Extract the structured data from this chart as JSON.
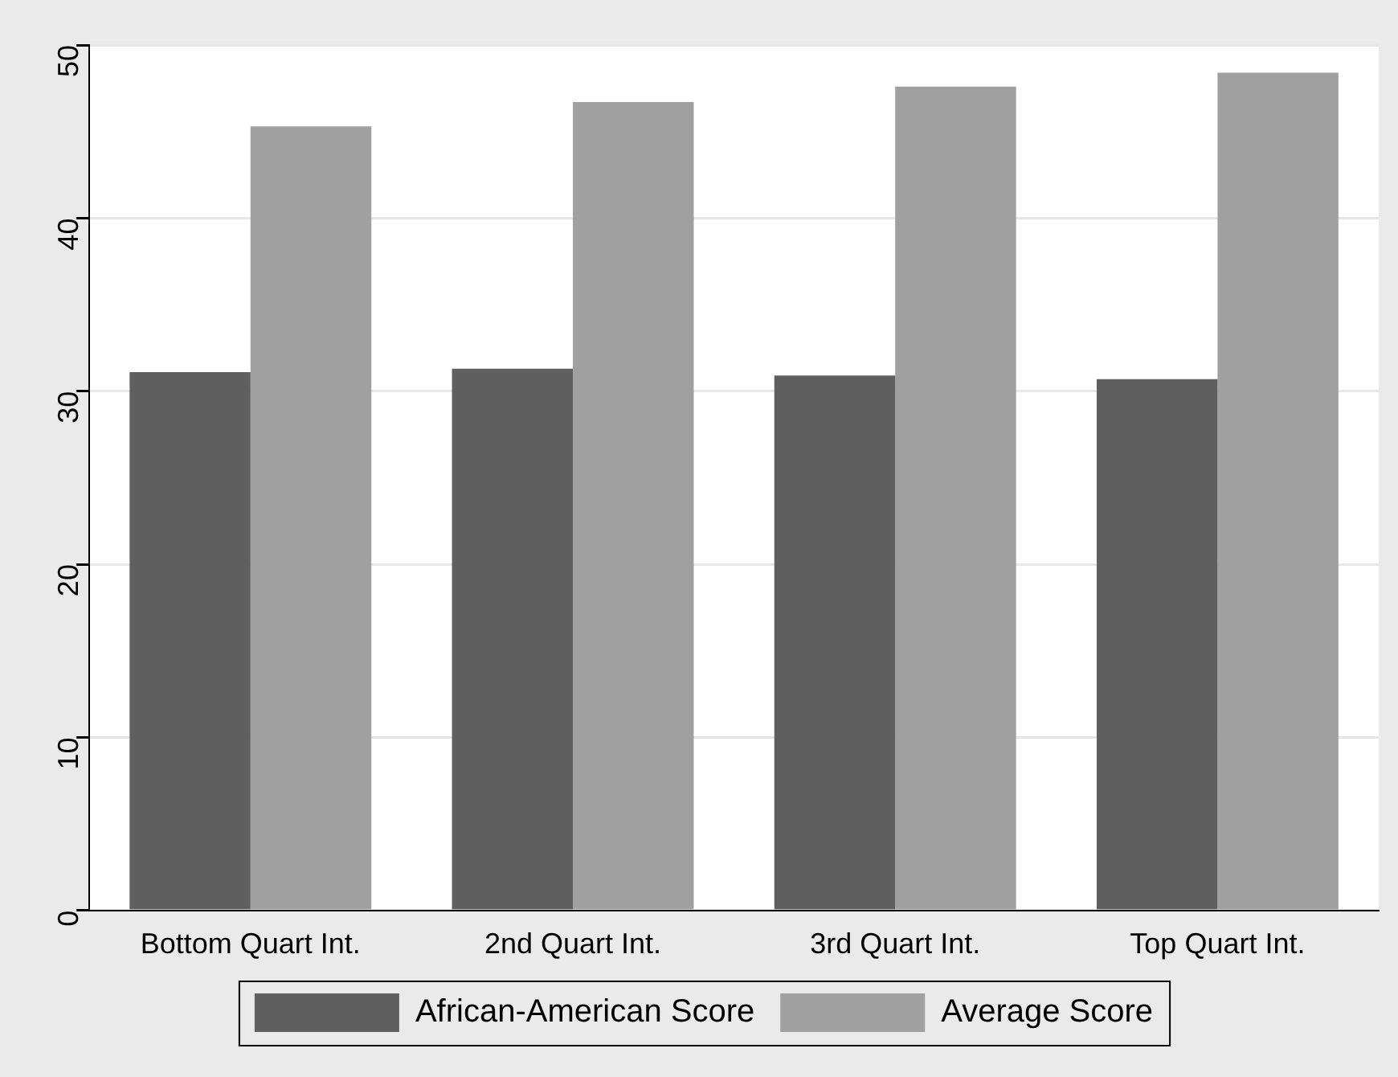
{
  "chart_data": {
    "type": "bar",
    "categories": [
      "Bottom Quart Int.",
      "2nd Quart Int.",
      "3rd Quart Int.",
      "Top Quart Int."
    ],
    "series": [
      {
        "name": "African-American Score",
        "color": "#5f5f5f",
        "values": [
          31.1,
          31.3,
          30.9,
          30.7
        ]
      },
      {
        "name": "Average Score",
        "color": "#a0a0a0",
        "values": [
          45.3,
          46.7,
          47.6,
          48.4
        ]
      }
    ],
    "ylim": [
      0,
      50
    ],
    "yticks": [
      0,
      10,
      20,
      30,
      40,
      50
    ],
    "grid": "y",
    "legend": "bottom"
  }
}
